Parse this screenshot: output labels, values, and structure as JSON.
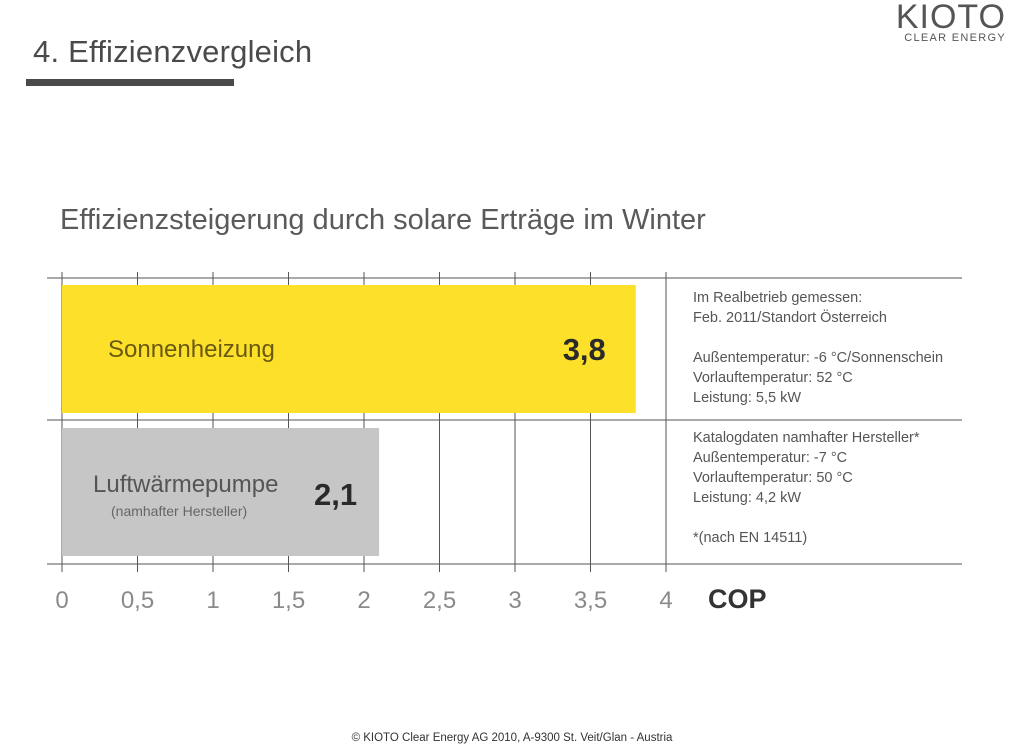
{
  "slide": {
    "title": "4. Effizienzvergleich"
  },
  "logo": {
    "wordmark": "KIOTO",
    "tagline": "CLEAR ENERGY"
  },
  "colors": {
    "solar": "#fde02a",
    "heat_pump": "#c6c6c6",
    "grid": "#555555",
    "text": "#3a3a3a"
  },
  "chart_data": {
    "type": "bar",
    "orientation": "horizontal",
    "title": "Effizienzsteigerung durch solare Erträge im Winter",
    "xlabel": "COP",
    "xlim": [
      0,
      4
    ],
    "xticks": [
      0,
      0.5,
      1,
      1.5,
      2,
      2.5,
      3,
      3.5,
      4
    ],
    "xtick_labels": [
      "0",
      "0,5",
      "1",
      "1,5",
      "2",
      "2,5",
      "3",
      "3,5",
      "4"
    ],
    "grid": true,
    "bars": [
      {
        "label": "Sonnenheizung",
        "sublabel": "",
        "value": 3.8,
        "value_label": "3,8",
        "color": "#fde02a"
      },
      {
        "label": "Luftwärmepumpe",
        "sublabel": "(namhafter Hersteller)",
        "value": 2.1,
        "value_label": "2,1",
        "color": "#c6c6c6"
      }
    ]
  },
  "notes": {
    "solar": [
      "Im Realbetrieb gemessen:",
      "Feb. 2011/Standort Österreich",
      "",
      "Außentemperatur: -6 °C/Sonnenschein",
      "Vorlauftemperatur: 52 °C",
      "Leistung: 5,5 kW"
    ],
    "heat_pump": [
      "Katalogdaten namhafter Hersteller*",
      "Außentemperatur: -7 °C",
      "Vorlauftemperatur: 50 °C",
      "Leistung: 4,2 kW",
      "",
      "*(nach EN 14511)"
    ]
  },
  "footer": {
    "text": "© KIOTO Clear Energy AG 2010, A-9300 St. Veit/Glan - Austria"
  }
}
